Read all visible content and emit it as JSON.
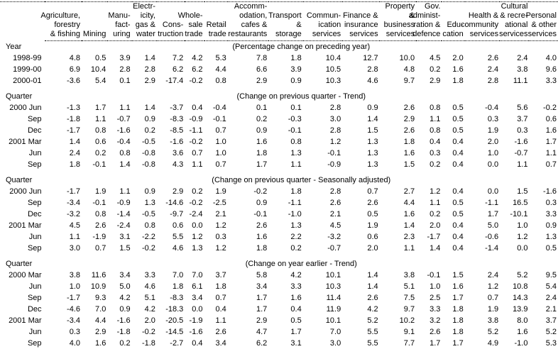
{
  "colors": {
    "text": "#000000",
    "background": "#ffffff",
    "rule": "#000000"
  },
  "chart_data": {
    "type": "table",
    "title": "",
    "units": "percentage change",
    "columns": [
      {
        "name": "Agriculture, forestry & fishing",
        "display": "Agriculture,\nforestry\n& fishing"
      },
      {
        "name": "Mining",
        "display": "Mining"
      },
      {
        "name": "Manufacturing",
        "display": "Manu-\nfact-\nuring"
      },
      {
        "name": "Electricity, gas & water",
        "display": "Electr-\nicity,\ngas &\nwater"
      },
      {
        "name": "Construction",
        "display": "Cons-\ntruction"
      },
      {
        "name": "Wholesale trade",
        "display": "Whole-\nsale\ntrade"
      },
      {
        "name": "Retail trade",
        "display": "Retail\ntrade"
      },
      {
        "name": "Accommodation, cafes & restaurants",
        "display": "Accomm-\nodation,\ncafes &\nrestaurants"
      },
      {
        "name": "Transport & storage",
        "display": "Transport\n& storage"
      },
      {
        "name": "Communication services",
        "display": "Commun-\nication\nservices"
      },
      {
        "name": "Finance & insurance services",
        "display": "Finance &\ninsurance\nservices"
      },
      {
        "name": "Property & business services",
        "display": "Property &\nbusiness\nservices"
      },
      {
        "name": "Gov. administration & defence",
        "display": "Gov.\nadminist-\nration &\ndefence"
      },
      {
        "name": "Education",
        "display": "Edu-\ncation"
      },
      {
        "name": "Health & community services",
        "display": "Health &\ncommunity\nservices"
      },
      {
        "name": "Cultural & recreational services",
        "display": "Cultural\n& recre-\national\nservices"
      },
      {
        "name": "Personal & other services",
        "display": "Personal\n& other\nservices"
      }
    ],
    "sections": [
      {
        "label": "Year",
        "title": "(Percentage change on preceding year)",
        "rows": [
          {
            "label": "1998-99",
            "values": [
              "4.8",
              "0.5",
              "3.9",
              "1.4",
              "7.2",
              "4.2",
              "5.3",
              "7.8",
              "1.8",
              "10.4",
              "12.7",
              "10.0",
              "4.5",
              "2.0",
              "2.6",
              "2.4",
              "4.0"
            ]
          },
          {
            "label": "1999-00",
            "values": [
              "6.9",
              "10.4",
              "2.8",
              "2.8",
              "6.2",
              "6.2",
              "4.4",
              "6.6",
              "3.9",
              "10.5",
              "2.8",
              "4.8",
              "0.2",
              "1.6",
              "2.4",
              "3.8",
              "9.6"
            ]
          },
          {
            "label": "2000-01",
            "values": [
              "-3.6",
              "5.4",
              "0.1",
              "2.9",
              "-17.4",
              "-0.2",
              "0.8",
              "2.9",
              "0.9",
              "10.3",
              "4.6",
              "9.7",
              "2.9",
              "1.8",
              "2.8",
              "11.1",
              "3.3"
            ]
          }
        ]
      },
      {
        "label": "Quarter",
        "title": "(Change on previous quarter - Trend)",
        "rows": [
          {
            "label": "2000 Jun",
            "values": [
              "-1.3",
              "1.7",
              "1.1",
              "1.4",
              "-3.7",
              "0.4",
              "-0.4",
              "0.1",
              "0.1",
              "2.8",
              "0.9",
              "2.6",
              "0.8",
              "0.5",
              "-0.4",
              "5.6",
              "-0.2"
            ]
          },
          {
            "label": "Sep",
            "values": [
              "-1.8",
              "1.1",
              "-0.7",
              "0.9",
              "-8.3",
              "-0.9",
              "-0.1",
              "0.2",
              "-0.3",
              "3.0",
              "1.4",
              "2.9",
              "1.1",
              "0.5",
              "0.3",
              "3.7",
              "0.6"
            ]
          },
          {
            "label": "Dec",
            "values": [
              "-1.7",
              "0.8",
              "-1.6",
              "0.2",
              "-8.5",
              "-1.1",
              "0.7",
              "0.9",
              "-0.1",
              "2.8",
              "1.5",
              "2.6",
              "0.8",
              "0.5",
              "1.9",
              "0.3",
              "1.6"
            ]
          },
          {
            "label": "2001 Mar",
            "values": [
              "1.4",
              "0.6",
              "-0.4",
              "-0.5",
              "-1.6",
              "-0.2",
              "1.0",
              "1.6",
              "0.8",
              "1.2",
              "1.3",
              "1.8",
              "0.4",
              "0.4",
              "2.0",
              "-1.6",
              "1.7"
            ]
          },
          {
            "label": "Jun",
            "values": [
              "2.4",
              "0.2",
              "0.8",
              "-0.8",
              "3.6",
              "0.7",
              "1.0",
              "1.8",
              "1.3",
              "-0.1",
              "1.3",
              "1.6",
              "0.3",
              "0.4",
              "1.0",
              "-0.7",
              "1.1"
            ]
          },
          {
            "label": "Sep",
            "values": [
              "1.8",
              "-0.1",
              "1.4",
              "-0.8",
              "4.3",
              "1.1",
              "0.7",
              "1.7",
              "1.1",
              "-0.9",
              "1.3",
              "1.5",
              "0.2",
              "0.4",
              "0.0",
              "1.1",
              "0.7"
            ]
          }
        ]
      },
      {
        "label": "Quarter",
        "title": "(Change on previous quarter - Seasonally adjusted)",
        "rows": [
          {
            "label": "2000 Jun",
            "values": [
              "-1.7",
              "1.9",
              "1.1",
              "0.9",
              "2.9",
              "0.2",
              "1.9",
              "-0.2",
              "1.8",
              "2.8",
              "0.7",
              "2.7",
              "1.2",
              "0.4",
              "0.0",
              "1.5",
              "-1.6"
            ]
          },
          {
            "label": "Sep",
            "values": [
              "-3.4",
              "-0.1",
              "-0.9",
              "1.3",
              "-14.6",
              "-0.2",
              "-2.5",
              "0.9",
              "-1.1",
              "2.6",
              "2.6",
              "4.4",
              "1.1",
              "0.5",
              "-1.1",
              "16.5",
              "0.3"
            ]
          },
          {
            "label": "Dec",
            "values": [
              "-3.2",
              "0.8",
              "-1.4",
              "-0.5",
              "-9.7",
              "-2.4",
              "2.1",
              "-0.1",
              "-1.0",
              "2.1",
              "0.5",
              "1.6",
              "0.2",
              "0.5",
              "1.7",
              "-10.1",
              "3.3"
            ]
          },
          {
            "label": "2001 Mar",
            "values": [
              "4.5",
              "2.6",
              "-2.4",
              "0.8",
              "0.6",
              "0.0",
              "1.2",
              "2.6",
              "1.3",
              "4.5",
              "1.9",
              "1.4",
              "2.0",
              "0.4",
              "5.0",
              "1.0",
              "0.9"
            ]
          },
          {
            "label": "Jun",
            "values": [
              "1.1",
              "-1.9",
              "3.1",
              "-2.2",
              "5.5",
              "1.2",
              "0.3",
              "1.6",
              "2.2",
              "-3.2",
              "0.6",
              "2.3",
              "-1.7",
              "0.4",
              "-0.6",
              "1.2",
              "1.3"
            ]
          },
          {
            "label": "Sep",
            "values": [
              "3.0",
              "0.7",
              "1.5",
              "-0.2",
              "4.6",
              "1.3",
              "1.2",
              "1.8",
              "0.2",
              "-0.7",
              "2.0",
              "1.1",
              "1.4",
              "0.4",
              "-1.4",
              "0.0",
              "0.5"
            ]
          }
        ]
      },
      {
        "label": "Quarter",
        "title": "(Change on year earlier - Trend)",
        "rows": [
          {
            "label": "2000 Mar",
            "values": [
              "3.8",
              "11.6",
              "3.4",
              "3.3",
              "7.0",
              "7.0",
              "3.7",
              "5.8",
              "4.2",
              "10.1",
              "1.4",
              "3.8",
              "-0.1",
              "1.5",
              "2.4",
              "5.2",
              "9.5"
            ]
          },
          {
            "label": "Jun",
            "values": [
              "1.0",
              "10.9",
              "5.0",
              "4.6",
              "1.8",
              "6.1",
              "1.8",
              "3.4",
              "3.3",
              "10.3",
              "1.4",
              "5.1",
              "1.0",
              "1.6",
              "1.2",
              "10.8",
              "5.4"
            ]
          },
          {
            "label": "Sep",
            "values": [
              "-1.7",
              "9.3",
              "4.2",
              "5.1",
              "-8.3",
              "3.4",
              "0.7",
              "1.7",
              "1.6",
              "11.4",
              "2.6",
              "7.5",
              "2.5",
              "1.7",
              "0.7",
              "14.3",
              "2.4"
            ]
          },
          {
            "label": "Dec",
            "values": [
              "-4.6",
              "7.0",
              "0.9",
              "4.2",
              "-18.3",
              "0.0",
              "0.4",
              "1.7",
              "0.4",
              "11.9",
              "4.2",
              "9.7",
              "3.3",
              "1.8",
              "1.9",
              "13.9",
              "2.1"
            ]
          },
          {
            "label": "2001 Mar",
            "values": [
              "-3.4",
              "4.4",
              "-1.6",
              "2.0",
              "-20.5",
              "-1.9",
              "1.1",
              "2.9",
              "0.5",
              "10.1",
              "5.2",
              "10.2",
              "3.2",
              "1.8",
              "3.8",
              "8.0",
              "3.7"
            ]
          },
          {
            "label": "Jun",
            "values": [
              "0.3",
              "2.9",
              "-1.8",
              "-0.2",
              "-14.5",
              "-1.6",
              "2.6",
              "4.7",
              "1.7",
              "7.0",
              "5.5",
              "9.1",
              "2.6",
              "1.8",
              "5.2",
              "1.6",
              "5.2"
            ]
          },
          {
            "label": "Sep",
            "values": [
              "4.0",
              "1.6",
              "0.2",
              "-1.8",
              "-2.7",
              "0.4",
              "3.4",
              "6.2",
              "3.1",
              "3.0",
              "5.5",
              "7.7",
              "1.7",
              "1.7",
              "4.9",
              "-1.0",
              "5.3"
            ]
          }
        ]
      }
    ]
  }
}
